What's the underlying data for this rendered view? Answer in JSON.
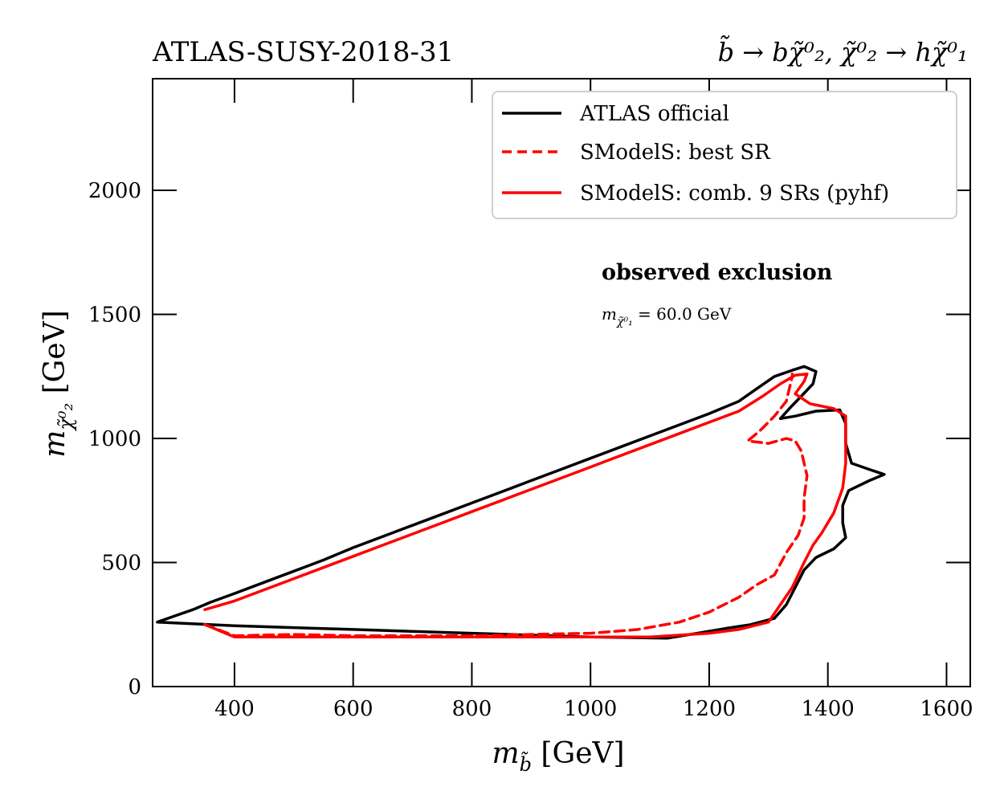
{
  "header": {
    "left_title": "ATLAS-SUSY-2018-31",
    "right_title": "b̃ → bχ̃⁰₂, χ̃⁰₂ → hχ̃⁰₁"
  },
  "annotations": {
    "observed": "observed exclusion",
    "mass_label": "m",
    "mass_sub": "χ̃⁰₁",
    "mass_value": " = 60.0 GeV"
  },
  "axes": {
    "xlabel_main": "m",
    "xlabel_sub": "b̃",
    "xlabel_unit": " [GeV]",
    "ylabel_main": "m",
    "ylabel_sub": "χ̃⁰₂",
    "ylabel_unit": " [GeV]"
  },
  "chart_data": {
    "type": "line",
    "title": "",
    "xlabel": "m_b̃ [GeV]",
    "ylabel": "m_χ̃⁰₂ [GeV]",
    "xlim": [
      262,
      1640
    ],
    "ylim": [
      0,
      2450
    ],
    "xticks": [
      400,
      600,
      800,
      1000,
      1200,
      1400,
      1600
    ],
    "yticks": [
      0,
      500,
      1000,
      1500,
      2000
    ],
    "grid": false,
    "legend_position": "top-right",
    "series": [
      {
        "name": "ATLAS official",
        "color": "#000000",
        "style": "solid",
        "points": [
          [
            270,
            260
          ],
          [
            300,
            285
          ],
          [
            330,
            310
          ],
          [
            360,
            340
          ],
          [
            400,
            375
          ],
          [
            450,
            420
          ],
          [
            500,
            465
          ],
          [
            550,
            510
          ],
          [
            600,
            560
          ],
          [
            650,
            605
          ],
          [
            700,
            650
          ],
          [
            750,
            695
          ],
          [
            800,
            740
          ],
          [
            850,
            785
          ],
          [
            900,
            830
          ],
          [
            950,
            875
          ],
          [
            1000,
            920
          ],
          [
            1050,
            965
          ],
          [
            1100,
            1010
          ],
          [
            1150,
            1055
          ],
          [
            1200,
            1100
          ],
          [
            1250,
            1150
          ],
          [
            1280,
            1200
          ],
          [
            1310,
            1250
          ],
          [
            1340,
            1275
          ],
          [
            1360,
            1290
          ],
          [
            1380,
            1270
          ],
          [
            1375,
            1220
          ],
          [
            1355,
            1170
          ],
          [
            1335,
            1120
          ],
          [
            1320,
            1080
          ],
          [
            1345,
            1090
          ],
          [
            1380,
            1110
          ],
          [
            1420,
            1115
          ],
          [
            1430,
            1060
          ],
          [
            1430,
            980
          ],
          [
            1440,
            900
          ],
          [
            1470,
            875
          ],
          [
            1495,
            855
          ],
          [
            1470,
            830
          ],
          [
            1435,
            790
          ],
          [
            1425,
            730
          ],
          [
            1425,
            660
          ],
          [
            1430,
            600
          ],
          [
            1410,
            555
          ],
          [
            1380,
            520
          ],
          [
            1360,
            470
          ],
          [
            1345,
            400
          ],
          [
            1330,
            330
          ],
          [
            1310,
            275
          ],
          [
            1270,
            250
          ],
          [
            1230,
            235
          ],
          [
            1180,
            215
          ],
          [
            1130,
            195
          ],
          [
            1000,
            200
          ],
          [
            800,
            215
          ],
          [
            600,
            230
          ],
          [
            400,
            245
          ],
          [
            270,
            260
          ]
        ]
      },
      {
        "name": "SModelS: best SR",
        "color": "#ff0000",
        "style": "dashed",
        "points": [
          [
            350,
            250
          ],
          [
            400,
            205
          ],
          [
            500,
            210
          ],
          [
            600,
            205
          ],
          [
            700,
            205
          ],
          [
            800,
            205
          ],
          [
            900,
            210
          ],
          [
            1000,
            215
          ],
          [
            1080,
            230
          ],
          [
            1150,
            260
          ],
          [
            1200,
            300
          ],
          [
            1250,
            360
          ],
          [
            1280,
            410
          ],
          [
            1310,
            450
          ],
          [
            1330,
            540
          ],
          [
            1350,
            610
          ],
          [
            1360,
            680
          ],
          [
            1360,
            760
          ],
          [
            1365,
            850
          ],
          [
            1355,
            950
          ],
          [
            1345,
            990
          ],
          [
            1330,
            1000
          ],
          [
            1300,
            980
          ],
          [
            1265,
            990
          ],
          [
            1285,
            1030
          ],
          [
            1310,
            1090
          ],
          [
            1330,
            1150
          ],
          [
            1335,
            1200
          ],
          [
            1340,
            1250
          ],
          [
            1340,
            1260
          ]
        ]
      },
      {
        "name": "SModelS: comb. 9 SRs (pyhf)",
        "color": "#ff0000",
        "style": "solid",
        "points": [
          [
            350,
            310
          ],
          [
            400,
            345
          ],
          [
            450,
            390
          ],
          [
            500,
            435
          ],
          [
            550,
            480
          ],
          [
            600,
            525
          ],
          [
            650,
            570
          ],
          [
            700,
            615
          ],
          [
            750,
            660
          ],
          [
            800,
            705
          ],
          [
            850,
            750
          ],
          [
            900,
            795
          ],
          [
            950,
            840
          ],
          [
            1000,
            885
          ],
          [
            1050,
            930
          ],
          [
            1100,
            975
          ],
          [
            1150,
            1020
          ],
          [
            1200,
            1065
          ],
          [
            1250,
            1110
          ],
          [
            1290,
            1170
          ],
          [
            1320,
            1220
          ],
          [
            1345,
            1255
          ],
          [
            1365,
            1260
          ],
          [
            1360,
            1230
          ],
          [
            1345,
            1180
          ],
          [
            1370,
            1140
          ],
          [
            1410,
            1120
          ],
          [
            1430,
            1090
          ],
          [
            1430,
            1000
          ],
          [
            1430,
            900
          ],
          [
            1425,
            800
          ],
          [
            1410,
            700
          ],
          [
            1390,
            620
          ],
          [
            1375,
            570
          ],
          [
            1360,
            500
          ],
          [
            1340,
            400
          ],
          [
            1320,
            330
          ],
          [
            1300,
            260
          ],
          [
            1250,
            230
          ],
          [
            1200,
            215
          ],
          [
            1100,
            200
          ],
          [
            1000,
            200
          ],
          [
            900,
            200
          ],
          [
            800,
            200
          ],
          [
            700,
            200
          ],
          [
            600,
            200
          ],
          [
            500,
            200
          ],
          [
            400,
            200
          ],
          [
            350,
            250
          ]
        ]
      }
    ]
  }
}
